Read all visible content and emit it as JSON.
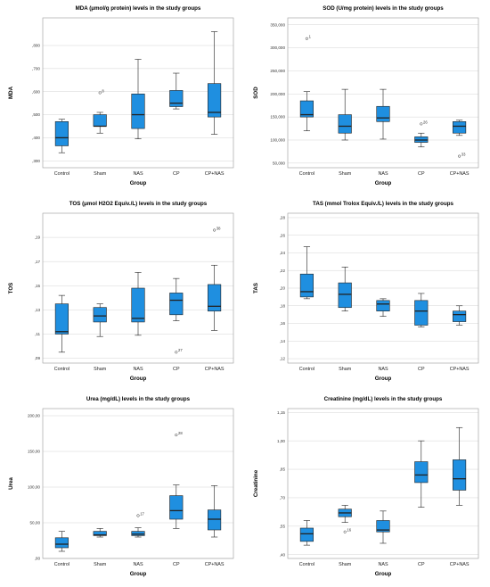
{
  "categories": [
    "Control",
    "Sham",
    "NAS",
    "CP",
    "CP+NAS"
  ],
  "xlabel": "Group",
  "colors": {
    "box": "#1f8fe0",
    "box_stroke": "#222222",
    "grid": "#d4d4d4",
    "frame": "#9a9a9a"
  },
  "chart_data": [
    {
      "type": "box",
      "title": "MDA (μmol/g protein) levels in the study groups",
      "ylabel": "MDA",
      "ylim": [
        270,
        920
      ],
      "yticks": [
        300,
        400,
        500,
        600,
        700,
        800
      ],
      "ytick_labels": [
        ",300",
        ",400",
        ",500",
        ",600",
        ",700",
        ",800"
      ],
      "boxes": [
        {
          "min": 335,
          "q1": 365,
          "median": 400,
          "q3": 470,
          "max": 480
        },
        {
          "min": 420,
          "q1": 450,
          "median": 450,
          "q3": 500,
          "max": 510
        },
        {
          "min": 395,
          "q1": 440,
          "median": 500,
          "q3": 590,
          "max": 740
        },
        {
          "min": 525,
          "q1": 535,
          "median": 550,
          "q3": 605,
          "max": 680
        },
        {
          "min": 415,
          "q1": 490,
          "median": 510,
          "q3": 635,
          "max": 860
        }
      ],
      "outliers": [
        {
          "group": 1,
          "value": 595,
          "label": "8"
        }
      ]
    },
    {
      "type": "box",
      "title": "SOD (U/mg protein) levels in the study groups",
      "ylabel": "SOD",
      "ylim": [
        40000,
        365000
      ],
      "yticks": [
        50000,
        100000,
        150000,
        200000,
        250000,
        300000,
        350000
      ],
      "ytick_labels": [
        "50,000",
        "100,000",
        "150,000",
        "200,000",
        "250,000",
        "300,000",
        "350,000"
      ],
      "boxes": [
        {
          "min": 120000,
          "q1": 150000,
          "median": 155000,
          "q3": 185000,
          "max": 205000
        },
        {
          "min": 100000,
          "q1": 115000,
          "median": 130000,
          "q3": 155000,
          "max": 210000
        },
        {
          "min": 102000,
          "q1": 140000,
          "median": 148000,
          "q3": 173000,
          "max": 210000
        },
        {
          "min": 85000,
          "q1": 95000,
          "median": 100000,
          "q3": 107000,
          "max": 115000
        },
        {
          "min": 110000,
          "q1": 115000,
          "median": 130000,
          "q3": 140000,
          "max": 143000
        }
      ],
      "outliers": [
        {
          "group": 0,
          "value": 320000,
          "label": "1"
        },
        {
          "group": 3,
          "value": 135000,
          "label": "26"
        },
        {
          "group": 4,
          "value": 65000,
          "label": "33"
        }
      ]
    },
    {
      "type": "box",
      "title": "TOS (μmol H2O2 Equiv./L) levels in the study groups",
      "ylabel": "TOS",
      "ylim": [
        8.6,
        21
      ],
      "yticks": [
        9,
        11,
        13,
        15,
        17,
        19
      ],
      "ytick_labels": [
        ",09",
        ",11",
        ",13",
        ",15",
        ",17",
        ",19"
      ],
      "boxes": [
        {
          "min": 9.5,
          "q1": 11.0,
          "median": 11.2,
          "q3": 13.5,
          "max": 14.2
        },
        {
          "min": 10.8,
          "q1": 12.0,
          "median": 12.5,
          "q3": 13.2,
          "max": 13.5
        },
        {
          "min": 10.9,
          "q1": 12.0,
          "median": 12.3,
          "q3": 14.8,
          "max": 16.1
        },
        {
          "min": 12.1,
          "q1": 12.6,
          "median": 13.8,
          "q3": 14.4,
          "max": 15.6
        },
        {
          "min": 11.3,
          "q1": 12.9,
          "median": 13.3,
          "q3": 15.1,
          "max": 16.7
        }
      ],
      "outliers": [
        {
          "group": 3,
          "value": 9.5,
          "label": "27"
        },
        {
          "group": 4,
          "value": 19.6,
          "label": "38"
        }
      ]
    },
    {
      "type": "box",
      "title": "TAS (mmol Trolox Equiv./L) levels in the study groups",
      "ylabel": "TAS",
      "ylim": [
        0.115,
        0.285
      ],
      "yticks": [
        0.12,
        0.14,
        0.16,
        0.18,
        0.2,
        0.22,
        0.24,
        0.26,
        0.28
      ],
      "ytick_labels": [
        ",12",
        ",14",
        ",16",
        ",18",
        ",20",
        ",22",
        ",24",
        ",26",
        ",28"
      ],
      "boxes": [
        {
          "min": 0.188,
          "q1": 0.19,
          "median": 0.196,
          "q3": 0.216,
          "max": 0.247
        },
        {
          "min": 0.174,
          "q1": 0.178,
          "median": 0.193,
          "q3": 0.206,
          "max": 0.224
        },
        {
          "min": 0.168,
          "q1": 0.174,
          "median": 0.182,
          "q3": 0.186,
          "max": 0.188
        },
        {
          "min": 0.156,
          "q1": 0.158,
          "median": 0.174,
          "q3": 0.186,
          "max": 0.194
        },
        {
          "min": 0.158,
          "q1": 0.162,
          "median": 0.17,
          "q3": 0.174,
          "max": 0.18
        }
      ],
      "outliers": []
    },
    {
      "type": "box",
      "title": "Urea (mg/dL) levels in the study groups",
      "ylabel": "Urea",
      "ylim": [
        0,
        210
      ],
      "yticks": [
        0,
        50,
        100,
        150,
        200
      ],
      "ytick_labels": [
        ",00",
        "50,00",
        "100,00",
        "150,00",
        "200,00"
      ],
      "boxes": [
        {
          "min": 10,
          "q1": 15,
          "median": 20,
          "q3": 29,
          "max": 38
        },
        {
          "min": 30,
          "q1": 32,
          "median": 33,
          "q3": 38,
          "max": 42
        },
        {
          "min": 30,
          "q1": 32,
          "median": 34,
          "q3": 38,
          "max": 43
        },
        {
          "min": 42,
          "q1": 55,
          "median": 67,
          "q3": 88,
          "max": 103
        },
        {
          "min": 30,
          "q1": 40,
          "median": 55,
          "q3": 68,
          "max": 102
        }
      ],
      "outliers": [
        {
          "group": 2,
          "value": 60,
          "label": "17"
        },
        {
          "group": 3,
          "value": 173,
          "label": "28"
        }
      ]
    },
    {
      "type": "box",
      "title": "Creatinine (mg/dL) levels in the study groups",
      "ylabel": "Creatinine",
      "ylim": [
        0.38,
        1.17
      ],
      "yticks": [
        0.4,
        0.55,
        0.7,
        0.85,
        1.0,
        1.15
      ],
      "ytick_labels": [
        ",40",
        ",55",
        ",70",
        ",85",
        "1,00",
        "1,15"
      ],
      "boxes": [
        {
          "min": 0.45,
          "q1": 0.47,
          "median": 0.51,
          "q3": 0.54,
          "max": 0.58
        },
        {
          "min": 0.57,
          "q1": 0.6,
          "median": 0.62,
          "q3": 0.64,
          "max": 0.66
        },
        {
          "min": 0.46,
          "q1": 0.52,
          "median": 0.53,
          "q3": 0.58,
          "max": 0.63
        },
        {
          "min": 0.65,
          "q1": 0.78,
          "median": 0.82,
          "q3": 0.89,
          "max": 1.0
        },
        {
          "min": 0.66,
          "q1": 0.74,
          "median": 0.8,
          "q3": 0.9,
          "max": 1.07
        }
      ],
      "outliers": [
        {
          "group": 1,
          "value": 0.52,
          "label": "16"
        }
      ]
    }
  ]
}
